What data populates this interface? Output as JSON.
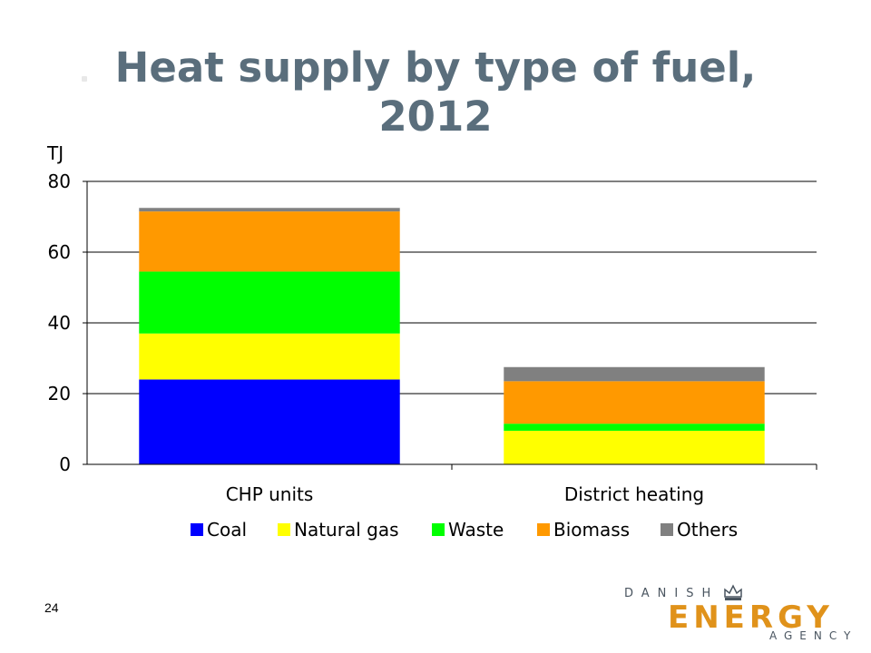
{
  "slide": {
    "title": "Heat supply by type of fuel, 2012",
    "page_number": "24",
    "logo": {
      "top": "DANISH",
      "main": "ENERGY",
      "bottom": "AGENCY",
      "icon": "crown-icon"
    }
  },
  "chart_data": {
    "type": "bar",
    "stacked": true,
    "title": "Heat supply by type of fuel, 2012",
    "ylabel": "TJ",
    "xlabel": "",
    "ylim": [
      0,
      80
    ],
    "yticks": [
      "80",
      "60",
      "40",
      "20",
      "0"
    ],
    "categories": [
      "CHP units",
      "District heating"
    ],
    "series": [
      {
        "name": "Coal",
        "color": "#0000ff",
        "values": [
          24,
          0
        ]
      },
      {
        "name": "Natural gas",
        "color": "#ffff00",
        "values": [
          13,
          9.5
        ]
      },
      {
        "name": "Waste",
        "color": "#00ff00",
        "values": [
          17.5,
          2
        ]
      },
      {
        "name": "Biomass",
        "color": "#ff9900",
        "values": [
          17,
          12
        ]
      },
      {
        "name": "Others",
        "color": "#808080",
        "values": [
          1,
          4
        ]
      }
    ],
    "grid": true,
    "legend": "bottom"
  }
}
